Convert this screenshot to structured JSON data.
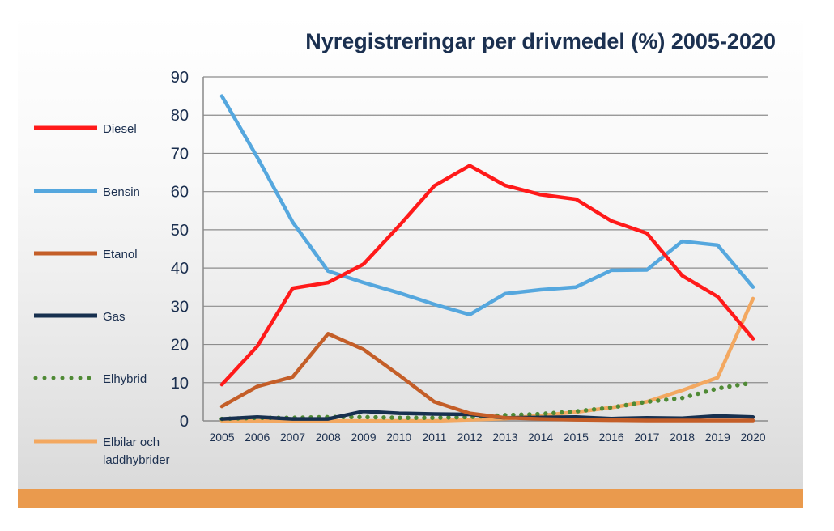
{
  "chart_data": {
    "type": "line",
    "title": "Nyregistreringar per drivmedel (%) 2005-2020",
    "xlabel": "",
    "ylabel": "",
    "categories": [
      "2005",
      "2006",
      "2007",
      "2008",
      "2009",
      "2010",
      "2011",
      "2012",
      "2013",
      "2014",
      "2015",
      "2016",
      "2017",
      "2018",
      "2019",
      "2020"
    ],
    "ylim": [
      0,
      90
    ],
    "yticks": [
      "0",
      "10",
      "20",
      "30",
      "40",
      "50",
      "60",
      "70",
      "80",
      "90"
    ],
    "grid": true,
    "legend_position": "left",
    "series": [
      {
        "name": "Diesel",
        "color": "#ff1a1a",
        "dash": "solid",
        "values": [
          9.5,
          19.5,
          34.7,
          36.2,
          41.0,
          51.0,
          61.5,
          66.8,
          61.6,
          59.2,
          58.0,
          52.3,
          49.1,
          38.0,
          32.5,
          21.5
        ]
      },
      {
        "name": "Bensin",
        "color": "#55a7de",
        "dash": "solid",
        "values": [
          85.0,
          69.0,
          52.0,
          39.2,
          36.2,
          33.5,
          30.5,
          27.8,
          33.3,
          34.3,
          35.0,
          39.4,
          39.5,
          47.0,
          46.0,
          35.0
        ]
      },
      {
        "name": "Etanol",
        "color": "#c45e28",
        "dash": "solid",
        "values": [
          3.8,
          9.0,
          11.5,
          22.8,
          18.7,
          12.0,
          5.0,
          2.0,
          0.8,
          0.5,
          0.3,
          0.2,
          0.1,
          0.1,
          0.1,
          0.1
        ]
      },
      {
        "name": "Gas",
        "color": "#17304f",
        "dash": "solid",
        "values": [
          0.5,
          1.0,
          0.5,
          0.5,
          2.5,
          2.0,
          1.8,
          1.7,
          0.8,
          0.9,
          1.0,
          0.6,
          0.8,
          0.7,
          1.3,
          1.0
        ]
      },
      {
        "name": "Elhybrid",
        "color": "#4f8a35",
        "dash": "dotted",
        "values": [
          0.5,
          0.8,
          0.8,
          1.0,
          1.0,
          0.8,
          0.8,
          1.0,
          1.5,
          1.8,
          2.5,
          3.5,
          5.0,
          6.0,
          8.5,
          10.0
        ]
      },
      {
        "name": "Elbilar och laddhybrider",
        "color": "#f3a860",
        "dash": "solid",
        "values": [
          0.0,
          0.0,
          0.0,
          0.0,
          0.0,
          0.0,
          0.0,
          0.3,
          0.6,
          1.4,
          2.3,
          3.5,
          5.0,
          8.0,
          11.3,
          32.0
        ]
      }
    ]
  },
  "legend": {
    "diesel": "Diesel",
    "bensin": "Bensin",
    "etanol": "Etanol",
    "gas": "Gas",
    "elhybrid": "Elhybrid",
    "elbilar_line1": "Elbilar och",
    "elbilar_line2": "laddhybrider"
  }
}
